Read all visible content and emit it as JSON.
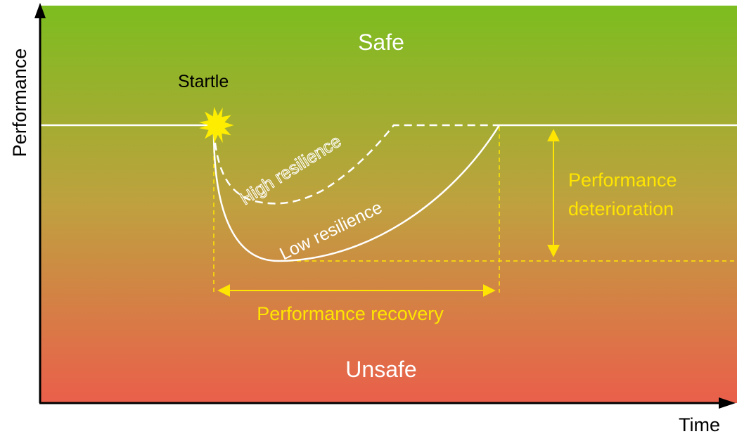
{
  "axes": {
    "y_label": "Performance",
    "x_label": "Time"
  },
  "zones": {
    "safe": "Safe",
    "unsafe": "Unsafe"
  },
  "event": {
    "label": "Startle"
  },
  "curves": {
    "high": "High resilience",
    "low": "Low resilience"
  },
  "annotations": {
    "deterioration_line1": "Performance",
    "deterioration_line2": "deterioration",
    "recovery": "Performance recovery"
  },
  "colors": {
    "gradient_top": "#7cbd1f",
    "gradient_mid": "#b9a63c",
    "gradient_bottom": "#ea5f4b",
    "annotation": "#ffe500",
    "curve": "#ffffff",
    "startle_burst": "#ffed00",
    "axis": "#000000"
  }
}
